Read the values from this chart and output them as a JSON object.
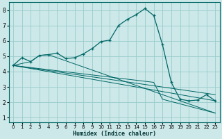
{
  "xlabel": "Humidex (Indice chaleur)",
  "bg_color": "#cce8e8",
  "grid_color": "#99cccc",
  "line_color": "#006666",
  "xlim": [
    -0.5,
    23.5
  ],
  "ylim": [
    0.7,
    8.5
  ],
  "xticks": [
    0,
    1,
    2,
    3,
    4,
    5,
    6,
    7,
    8,
    9,
    10,
    11,
    12,
    13,
    14,
    15,
    16,
    17,
    18,
    19,
    20,
    21,
    22,
    23
  ],
  "yticks": [
    1,
    2,
    3,
    4,
    5,
    6,
    7,
    8
  ],
  "lines": [
    {
      "x": [
        0,
        1,
        2,
        3,
        4,
        5,
        6,
        7,
        8,
        9,
        10,
        11,
        12,
        13,
        14,
        15,
        16,
        17,
        18,
        19,
        20,
        21,
        22,
        23
      ],
      "y": [
        4.4,
        4.9,
        4.65,
        5.05,
        5.1,
        5.2,
        4.85,
        4.9,
        5.15,
        5.5,
        5.95,
        6.05,
        7.0,
        7.4,
        7.7,
        8.1,
        7.65,
        5.75,
        3.3,
        2.2,
        2.1,
        2.15,
        2.5,
        2.1
      ],
      "marker": true
    },
    {
      "x": [
        0,
        16,
        17,
        23
      ],
      "y": [
        4.4,
        3.3,
        2.2,
        1.3
      ],
      "marker": false
    },
    {
      "x": [
        0,
        23
      ],
      "y": [
        4.4,
        2.1
      ],
      "marker": false
    },
    {
      "x": [
        0,
        23
      ],
      "y": [
        4.4,
        2.5
      ],
      "marker": false
    },
    {
      "comment": "line going from (0,4.4) through (2,4.65),(3,5.05),(4,5.1) to (23,1.3)",
      "x": [
        0,
        2,
        3,
        4,
        23
      ],
      "y": [
        4.4,
        4.65,
        5.05,
        5.1,
        1.3
      ],
      "marker": false
    }
  ]
}
